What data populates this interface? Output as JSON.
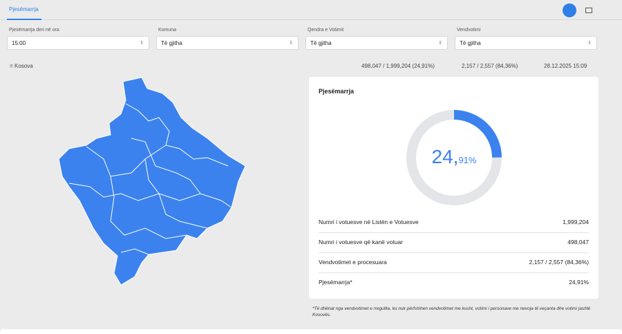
{
  "tabs": [
    {
      "label": "Pjesëmarrja"
    }
  ],
  "filters": [
    {
      "label": "Pjesëmarrja deri në ora",
      "value": "15:00"
    },
    {
      "label": "Komuna",
      "value": "Të gjitha"
    },
    {
      "label": "Qendra e Votimit",
      "value": "Të gjitha"
    },
    {
      "label": "Vendvotimi",
      "value": "Të gjitha"
    }
  ],
  "location": "Kosova",
  "stats": {
    "voters": "498,047 / 1,999,204 (24,91%)",
    "stations": "2,157 / 2,557 (84,36%)",
    "updated": "28.12.2025 15:09"
  },
  "card": {
    "title": "Pjesëmarrja",
    "donut": {
      "percent": 24.91,
      "whole": "24,",
      "fraction": "91%"
    },
    "rows": [
      {
        "label": "Numri i votuesve në Listën e Votuesve",
        "value": "1,999,204"
      },
      {
        "label": "Numri i votuesve që kanë votuar",
        "value": "498,047"
      },
      {
        "label": "Vendvotimet e procesuara",
        "value": "2,157 / 2,557 (84,36%)"
      },
      {
        "label": "Pjesëmarrja*",
        "value": "24,91%"
      }
    ]
  },
  "footnote": "*Të dhënat nga vendvotimet e rregullta, ku nuk përfshihen vendvotimet me kusht, votimi i personave me nevoja të veçanta dhe votimi jashtë Kosovës."
}
